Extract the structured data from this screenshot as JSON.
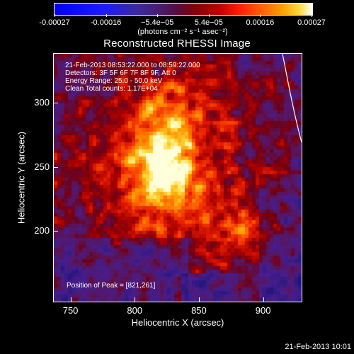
{
  "colorbar": {
    "ticks": [
      "-0.00027",
      "-0.00016",
      "−5.4e−05",
      "5.4e−05",
      "0.00016",
      "0.00027"
    ],
    "unit": "(photons cm⁻² s⁻¹ asec⁻²)"
  },
  "title": "Reconstructed RHESSI Image",
  "annotations": {
    "time": "21-Feb-2013 08:53:22.000 to 08:59:22.000",
    "detectors": "Detectors: 3F 5F 6F 7F 8F 9F, Att 0",
    "energy": "Energy Range: 25.0 - 50.0 keV",
    "clean": "Clean     Total counts: 1.17E+04",
    "peak": "Position of Peak = [821,261]"
  },
  "axes": {
    "xlabel": "Heliocentric X (arcsec)",
    "ylabel": "Heliocentric Y (arcsec)",
    "xticks": [
      "750",
      "800",
      "850",
      "900"
    ],
    "yticks": [
      "300",
      "250",
      "200"
    ],
    "xrange": [
      737,
      930
    ],
    "yrange": [
      145,
      338
    ]
  },
  "footer": {
    "datestamp": "21-Feb-2013 10:01"
  },
  "colors": {
    "background": "#000000",
    "foreground": "#ffffff"
  }
}
